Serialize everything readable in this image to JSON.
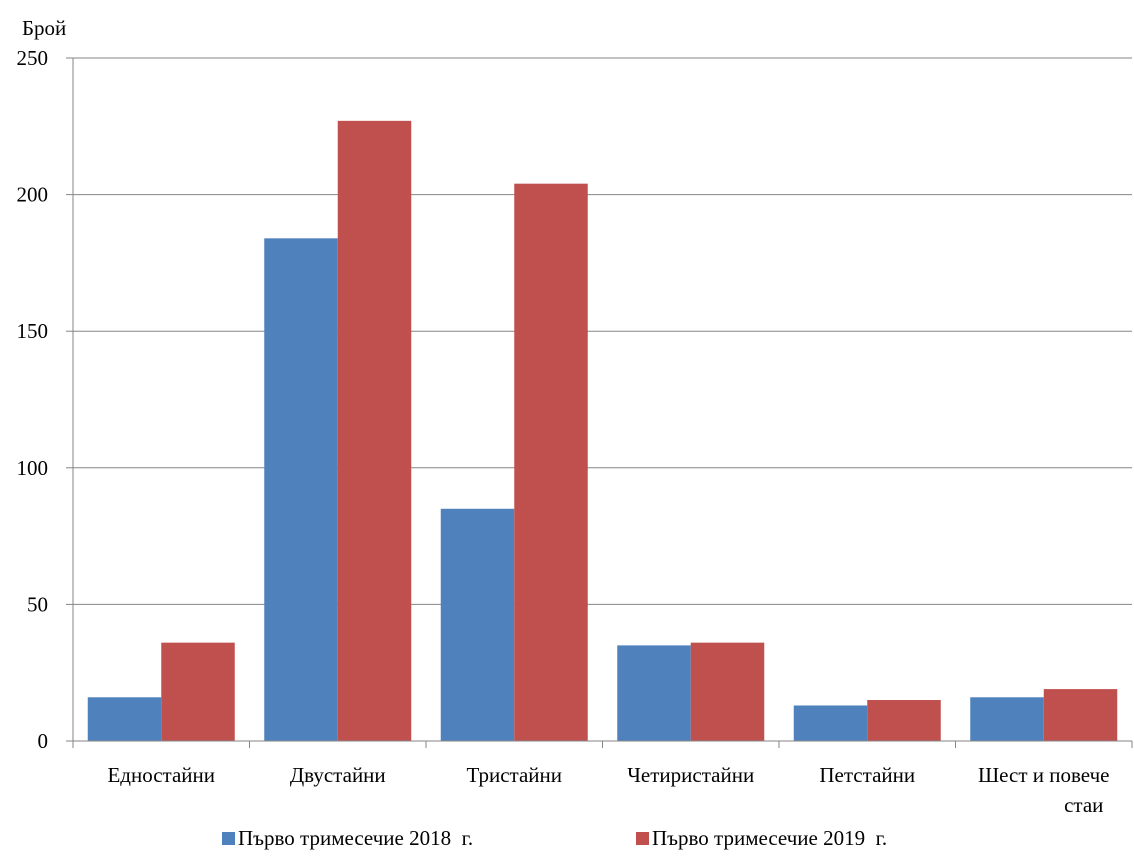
{
  "chart_data": {
    "type": "bar",
    "title": "",
    "ylabel": "Брой",
    "xlabel": "",
    "ylim": [
      0,
      250
    ],
    "yticks": [
      0,
      50,
      100,
      150,
      200,
      250
    ],
    "grid": true,
    "legend_position": "bottom",
    "categories": [
      [
        "Едностайни"
      ],
      [
        "Двустайни"
      ],
      [
        "Тристайни"
      ],
      [
        "Четиристайни"
      ],
      [
        "Петстайни"
      ],
      [
        "Шест и повече",
        "стаи"
      ]
    ],
    "series": [
      {
        "name": "Първо тримесечие 2018  г.",
        "color": "#4F81BD",
        "values": [
          16,
          184,
          85,
          35,
          13,
          16
        ]
      },
      {
        "name": "Първо тримесечие 2019  г.",
        "color": "#C0504D",
        "values": [
          36,
          227,
          204,
          36,
          15,
          19
        ]
      }
    ]
  }
}
